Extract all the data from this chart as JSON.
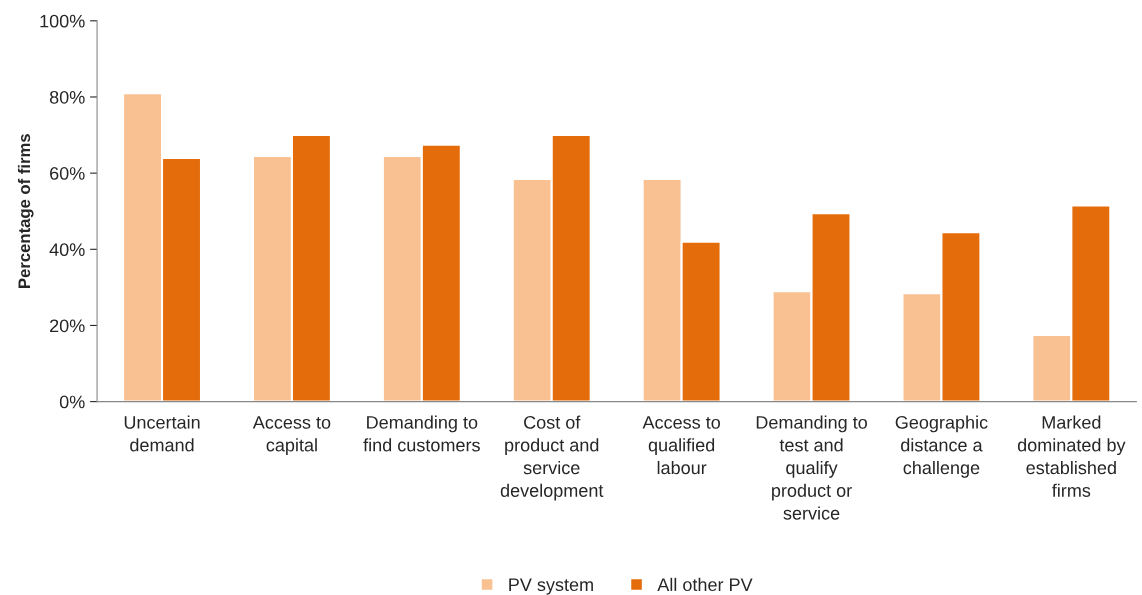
{
  "chart_data": {
    "type": "bar",
    "ylabel": "Percentage of firms",
    "categories": [
      "Uncertain\ndemand",
      "Access to\ncapital",
      "Demanding to\nfind customers",
      "Cost of\nproduct and\nservice\ndevelopment",
      "Access to\nqualified\nlabour",
      "Demanding to\ntest and\nqualify\nproduct or\nservice",
      "Geographic\ndistance a\nchallenge",
      "Marked\ndominated by\nestablished\nfirms"
    ],
    "series": [
      {
        "name": "PV system",
        "color": "#f9c092",
        "values": [
          81,
          64.5,
          64.5,
          58.5,
          58.5,
          29,
          28.5,
          17.5
        ]
      },
      {
        "name": "All other PV",
        "color": "#e46c0a",
        "values": [
          64,
          70,
          67.5,
          70,
          42,
          49.5,
          44.5,
          51.5
        ]
      }
    ],
    "ylim": [
      0,
      100
    ],
    "yticks": [
      {
        "value": 0,
        "label": "0%"
      },
      {
        "value": 20,
        "label": "20%"
      },
      {
        "value": 40,
        "label": "40%"
      },
      {
        "value": 60,
        "label": "60%"
      },
      {
        "value": 80,
        "label": "80%"
      },
      {
        "value": 100,
        "label": "100%"
      }
    ],
    "grid": false,
    "legend": "bottom"
  }
}
